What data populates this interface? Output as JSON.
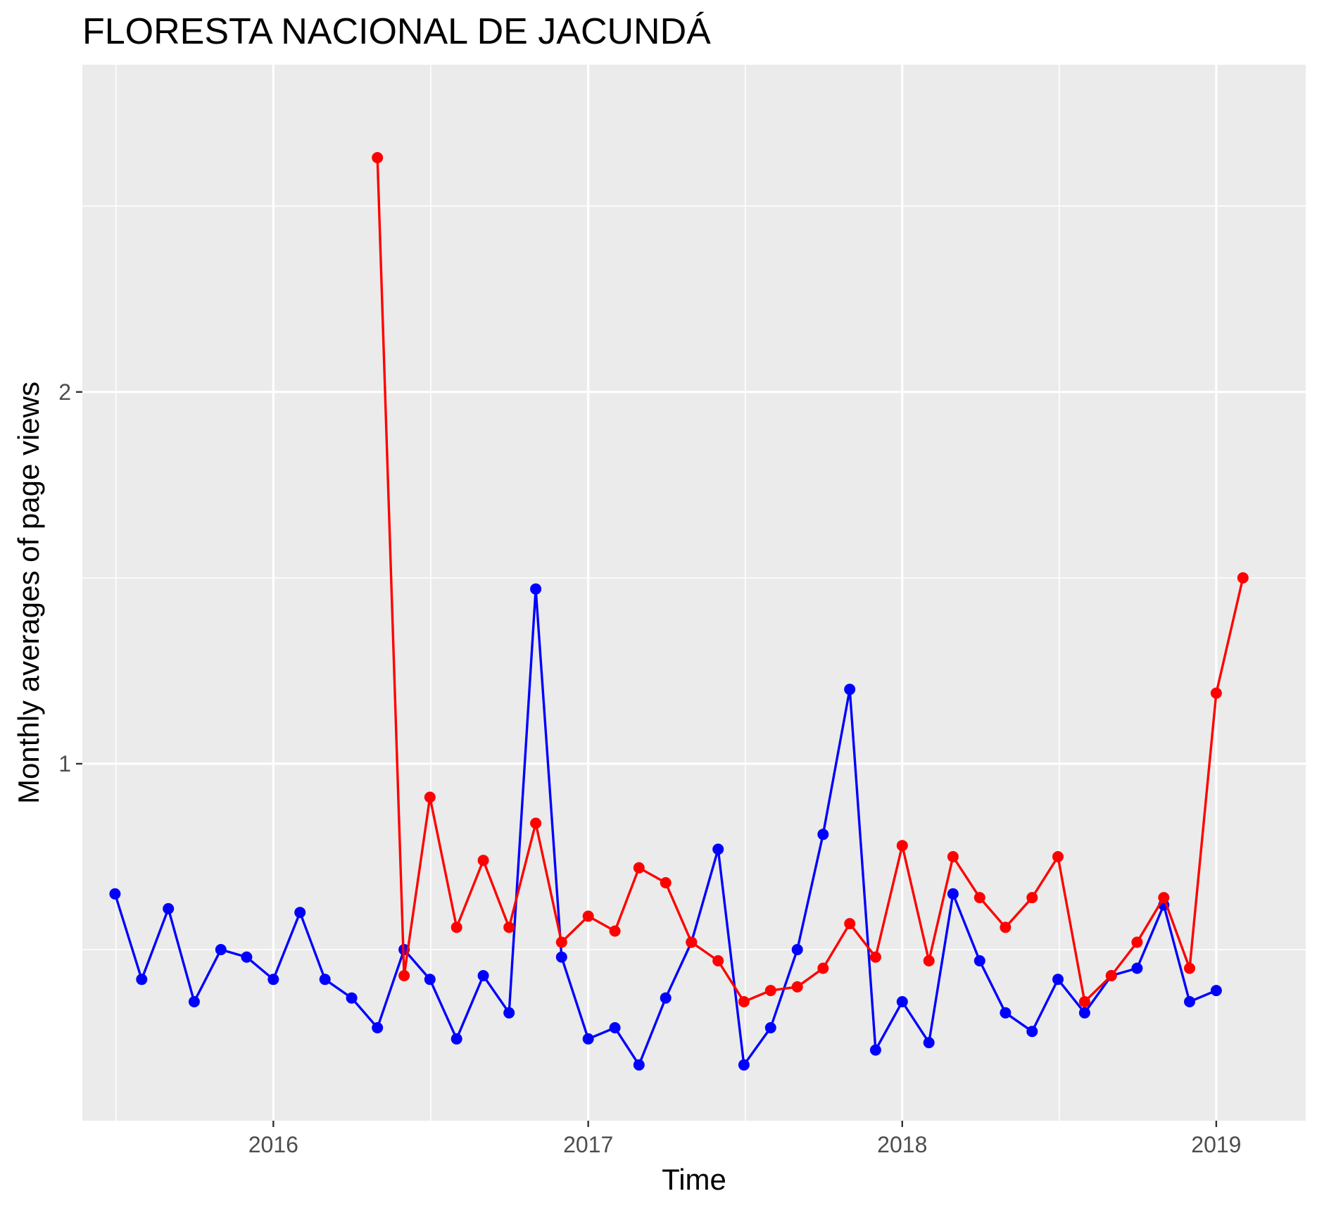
{
  "chart_data": {
    "type": "line",
    "title": "FLORESTA NACIONAL DE JACUNDÁ",
    "xlabel": "Time",
    "ylabel": "Monthly averages of page views",
    "x_tick_labels": [
      "2016",
      "2017",
      "2018",
      "2019"
    ],
    "y_tick_labels": [
      "1",
      "2"
    ],
    "xlim": [
      "2015-05-24",
      "2019-04-15"
    ],
    "ylim": [
      0.04,
      2.88
    ],
    "grid": true,
    "legend": "none",
    "colors": {
      "panel": "#EBEBEB",
      "grid": "#FFFFFF",
      "tick": "#333333"
    },
    "series": [
      {
        "color": "#0000FF",
        "points": [
          [
            "2015-07-01",
            0.65
          ],
          [
            "2015-08-01",
            0.42
          ],
          [
            "2015-09-01",
            0.61
          ],
          [
            "2015-10-01",
            0.36
          ],
          [
            "2015-11-01",
            0.5
          ],
          [
            "2015-12-01",
            0.48
          ],
          [
            "2016-01-01",
            0.42
          ],
          [
            "2016-02-01",
            0.6
          ],
          [
            "2016-03-01",
            0.42
          ],
          [
            "2016-04-01",
            0.37
          ],
          [
            "2016-05-01",
            0.29
          ],
          [
            "2016-06-01",
            0.5
          ],
          [
            "2016-07-01",
            0.42
          ],
          [
            "2016-08-01",
            0.26
          ],
          [
            "2016-09-01",
            0.43
          ],
          [
            "2016-10-01",
            0.33
          ],
          [
            "2016-11-01",
            1.47
          ],
          [
            "2016-12-01",
            0.48
          ],
          [
            "2017-01-01",
            0.26
          ],
          [
            "2017-02-01",
            0.29
          ],
          [
            "2017-03-01",
            0.19
          ],
          [
            "2017-04-01",
            0.37
          ],
          [
            "2017-05-01",
            0.52
          ],
          [
            "2017-06-01",
            0.77
          ],
          [
            "2017-07-01",
            0.19
          ],
          [
            "2017-08-01",
            0.29
          ],
          [
            "2017-09-01",
            0.5
          ],
          [
            "2017-10-01",
            0.81
          ],
          [
            "2017-11-01",
            1.2
          ],
          [
            "2017-12-01",
            0.23
          ],
          [
            "2018-01-01",
            0.36
          ],
          [
            "2018-02-01",
            0.25
          ],
          [
            "2018-03-01",
            0.65
          ],
          [
            "2018-04-01",
            0.47
          ],
          [
            "2018-05-01",
            0.33
          ],
          [
            "2018-06-01",
            0.28
          ],
          [
            "2018-07-01",
            0.42
          ],
          [
            "2018-08-01",
            0.33
          ],
          [
            "2018-09-01",
            0.43
          ],
          [
            "2018-10-01",
            0.45
          ],
          [
            "2018-11-01",
            0.62
          ],
          [
            "2018-12-01",
            0.36
          ],
          [
            "2019-01-01",
            0.39
          ]
        ]
      },
      {
        "color": "#FF0000",
        "points": [
          [
            "2016-05-01",
            2.63
          ],
          [
            "2016-06-01",
            0.43
          ],
          [
            "2016-07-01",
            0.91
          ],
          [
            "2016-08-01",
            0.56
          ],
          [
            "2016-09-01",
            0.74
          ],
          [
            "2016-10-01",
            0.56
          ],
          [
            "2016-11-01",
            0.84
          ],
          [
            "2016-12-01",
            0.52
          ],
          [
            "2017-01-01",
            0.59
          ],
          [
            "2017-02-01",
            0.55
          ],
          [
            "2017-03-01",
            0.72
          ],
          [
            "2017-04-01",
            0.68
          ],
          [
            "2017-05-01",
            0.52
          ],
          [
            "2017-06-01",
            0.47
          ],
          [
            "2017-07-01",
            0.36
          ],
          [
            "2017-08-01",
            0.39
          ],
          [
            "2017-09-01",
            0.4
          ],
          [
            "2017-10-01",
            0.45
          ],
          [
            "2017-11-01",
            0.57
          ],
          [
            "2017-12-01",
            0.48
          ],
          [
            "2018-01-01",
            0.78
          ],
          [
            "2018-02-01",
            0.47
          ],
          [
            "2018-03-01",
            0.75
          ],
          [
            "2018-04-01",
            0.64
          ],
          [
            "2018-05-01",
            0.56
          ],
          [
            "2018-06-01",
            0.64
          ],
          [
            "2018-07-01",
            0.75
          ],
          [
            "2018-08-01",
            0.36
          ],
          [
            "2018-09-01",
            0.43
          ],
          [
            "2018-10-01",
            0.52
          ],
          [
            "2018-11-01",
            0.64
          ],
          [
            "2018-12-01",
            0.45
          ],
          [
            "2019-01-01",
            1.19
          ],
          [
            "2019-02-01",
            1.5
          ]
        ]
      }
    ]
  }
}
